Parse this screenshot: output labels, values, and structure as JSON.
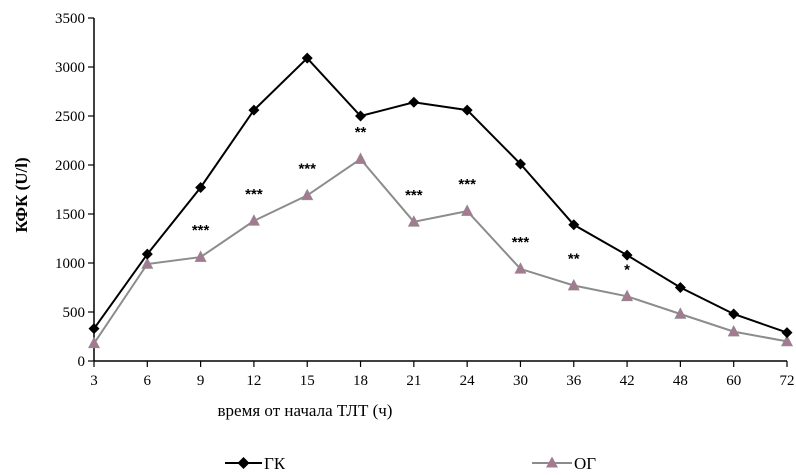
{
  "chart_data": {
    "type": "line",
    "title": "",
    "xlabel": "время от начала ТЛТ (ч)",
    "ylabel": "КФК (U/l)",
    "categories": [
      "3",
      "6",
      "9",
      "12",
      "15",
      "18",
      "21",
      "24",
      "30",
      "36",
      "42",
      "48",
      "60",
      "72"
    ],
    "yticks": [
      "0",
      "500",
      "1000",
      "1500",
      "2000",
      "2500",
      "3000",
      "3500"
    ],
    "ylim": [
      0,
      3500
    ],
    "grid": false,
    "legend_position": "bottom",
    "series": [
      {
        "name": "ГК",
        "color": "#000000",
        "marker": "diamond",
        "values": [
          330,
          1090,
          1770,
          2560,
          3090,
          2500,
          2640,
          2560,
          2010,
          1390,
          1080,
          750,
          480,
          290
        ]
      },
      {
        "name": "ОГ",
        "color": "#8c8c8c",
        "marker_color": "#a47a90",
        "marker": "triangle",
        "values": [
          180,
          990,
          1060,
          1430,
          1690,
          2060,
          1420,
          1530,
          940,
          770,
          660,
          480,
          300,
          200
        ]
      }
    ],
    "annotations": [
      "",
      "",
      "***",
      "***",
      "***",
      "**",
      "***",
      "***",
      "***",
      "**",
      "*",
      "",
      "",
      ""
    ]
  }
}
